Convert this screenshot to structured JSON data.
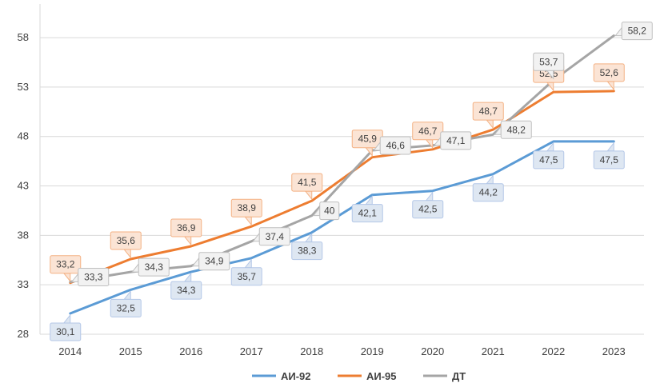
{
  "chart_data": {
    "type": "line",
    "title": "",
    "xlabel": "",
    "ylabel": "",
    "categories": [
      "2014",
      "2015",
      "2016",
      "2017",
      "2018",
      "2019",
      "2020",
      "2021",
      "2022",
      "2023"
    ],
    "yticks": [
      "28",
      "33",
      "38",
      "43",
      "48",
      "53",
      "58"
    ],
    "ylim": [
      28,
      61
    ],
    "grid": true,
    "legend_position": "bottom",
    "series": [
      {
        "name": "АИ-92",
        "color": "#5b9bd5",
        "values": [
          30.1,
          32.5,
          34.3,
          35.7,
          38.3,
          42.1,
          42.5,
          44.2,
          47.5,
          47.5
        ],
        "labels": [
          "30,1",
          "32,5",
          "34,3",
          "35,7",
          "38,3",
          "42,1",
          "42,5",
          "44,2",
          "47,5",
          "47,5"
        ]
      },
      {
        "name": "АИ-95",
        "color": "#ed7d31",
        "values": [
          33.2,
          35.6,
          36.9,
          38.9,
          41.5,
          45.9,
          46.7,
          48.7,
          52.5,
          52.6
        ],
        "labels": [
          "33,2",
          "35,6",
          "36,9",
          "38,9",
          "41,5",
          "45,9",
          "46,7",
          "48,7",
          "52,5",
          "52,6"
        ]
      },
      {
        "name": "ДТ",
        "color": "#a5a5a5",
        "values": [
          33.3,
          34.3,
          34.9,
          37.4,
          40,
          46.6,
          47.1,
          48.2,
          53.7,
          58.2
        ],
        "labels": [
          "33,3",
          "34,3",
          "34,9",
          "37,4",
          "40",
          "46,6",
          "47,1",
          "48,2",
          "53,7",
          "58,2"
        ]
      }
    ]
  }
}
